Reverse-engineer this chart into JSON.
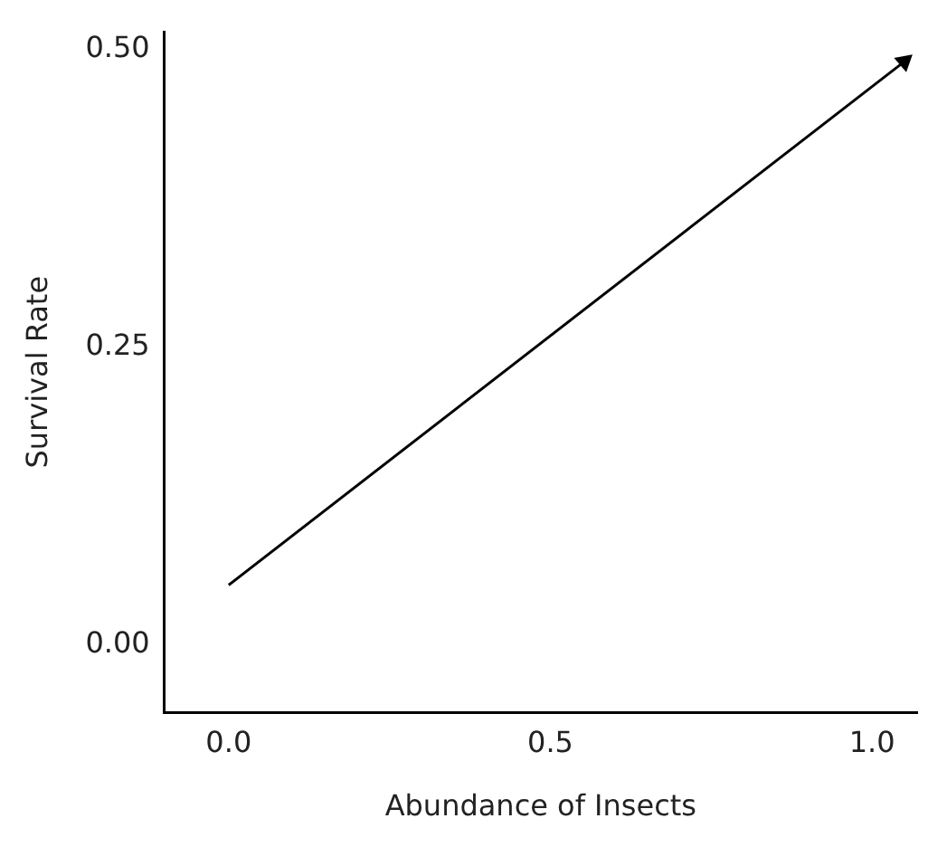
{
  "chart_data": {
    "type": "line",
    "xlabel": "Abundance of Insects",
    "ylabel": "Survival Rate",
    "x": [
      0,
      1.05
    ],
    "series": [
      {
        "color": "#000000",
        "values": [
          0.05,
          0.49
        ]
      }
    ],
    "xlim": [
      -0.1,
      1.07
    ],
    "ylim": [
      -0.057,
      0.515
    ],
    "xticks": [
      {
        "value": 0,
        "label": "0.0"
      },
      {
        "value": 0.5,
        "label": "0.5"
      },
      {
        "value": 1,
        "label": "1.0"
      }
    ],
    "yticks": [
      {
        "value": 0,
        "label": "0.00"
      },
      {
        "value": 0.25,
        "label": "0.25"
      },
      {
        "value": 0.5,
        "label": "0.50"
      }
    ],
    "grid": false,
    "legend": false,
    "marker": "triangle",
    "line_style": "solid"
  }
}
